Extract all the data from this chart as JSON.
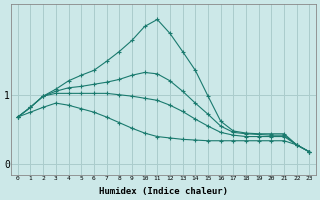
{
  "xlabel": "Humidex (Indice chaleur)",
  "ylabel": "",
  "background_color": "#cce8e8",
  "grid_color": "#aacccc",
  "line_color": "#1a7a6e",
  "x_values": [
    0,
    1,
    2,
    3,
    4,
    5,
    6,
    7,
    8,
    9,
    10,
    11,
    12,
    13,
    14,
    15,
    16,
    17,
    18,
    19,
    20,
    21,
    22,
    23
  ],
  "series": [
    [
      0.68,
      0.82,
      0.98,
      1.08,
      1.2,
      1.28,
      1.35,
      1.48,
      1.62,
      1.78,
      1.98,
      2.08,
      1.88,
      1.62,
      1.35,
      0.98,
      0.62,
      0.48,
      0.45,
      0.44,
      0.44,
      0.44,
      0.28,
      0.18
    ],
    [
      0.68,
      0.82,
      0.98,
      1.05,
      1.1,
      1.12,
      1.15,
      1.18,
      1.22,
      1.28,
      1.32,
      1.3,
      1.2,
      1.05,
      0.88,
      0.72,
      0.55,
      0.46,
      0.44,
      0.43,
      0.42,
      0.42,
      0.28,
      0.18
    ],
    [
      0.68,
      0.82,
      0.98,
      1.02,
      1.02,
      1.02,
      1.02,
      1.02,
      1.0,
      0.98,
      0.95,
      0.92,
      0.85,
      0.76,
      0.65,
      0.55,
      0.46,
      0.42,
      0.4,
      0.4,
      0.4,
      0.4,
      0.28,
      0.18
    ],
    [
      0.68,
      0.75,
      0.82,
      0.88,
      0.85,
      0.8,
      0.75,
      0.68,
      0.6,
      0.52,
      0.45,
      0.4,
      0.38,
      0.36,
      0.35,
      0.34,
      0.34,
      0.34,
      0.34,
      0.34,
      0.34,
      0.34,
      0.28,
      0.18
    ]
  ],
  "ylim": [
    -0.15,
    2.3
  ],
  "yticks": [
    0,
    1
  ],
  "xlim": [
    -0.5,
    23.5
  ],
  "xtick_labels": [
    "0",
    "1",
    "2",
    "3",
    "4",
    "5",
    "6",
    "7",
    "8",
    "9",
    "10",
    "11",
    "12",
    "13",
    "14",
    "15",
    "16",
    "17",
    "18",
    "19",
    "20",
    "21",
    "22",
    "23"
  ]
}
